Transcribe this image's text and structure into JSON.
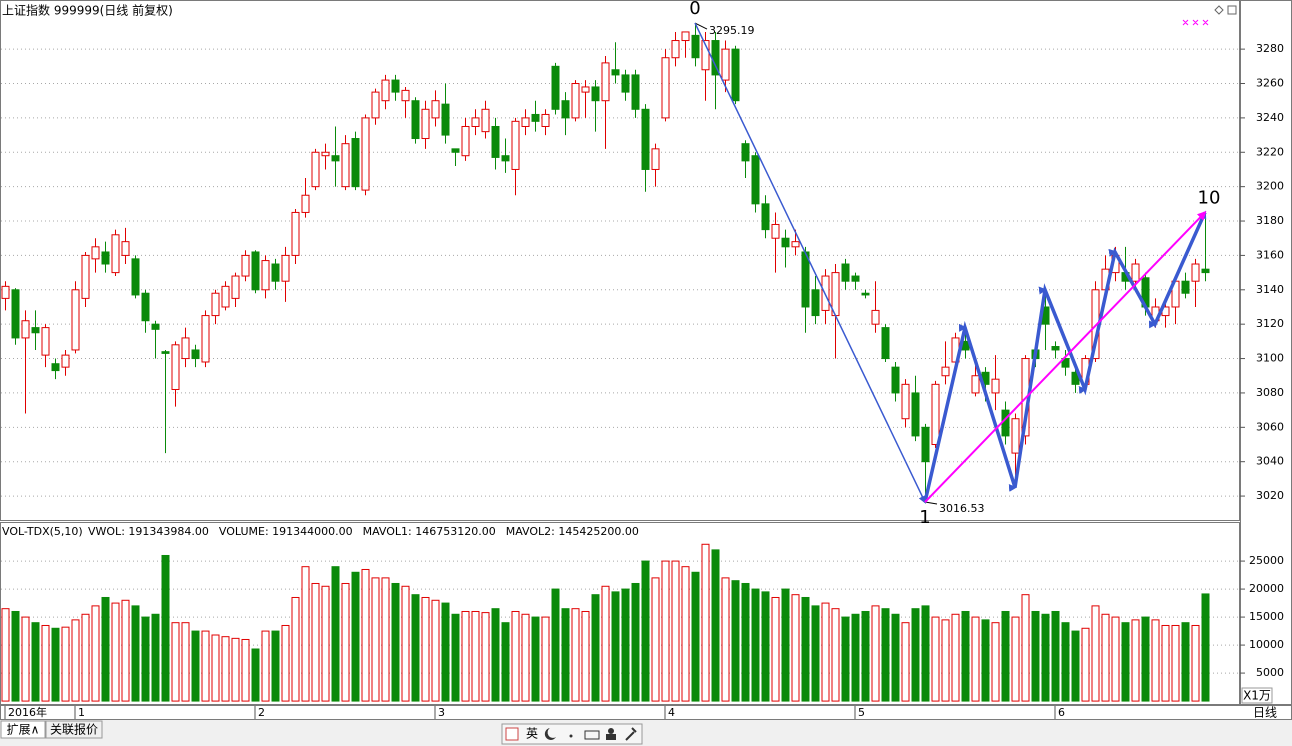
{
  "chart_data": [
    {
      "type": "candlestick",
      "title": "上证指数 999999(日线 前复权)",
      "xlim": [
        -0.5,
        123.5
      ],
      "xticks": [
        {
          "value": 0,
          "label": "2016年"
        },
        {
          "value": 7,
          "label": "1"
        },
        {
          "value": 25,
          "label": "2"
        },
        {
          "value": 43,
          "label": "3"
        },
        {
          "value": 66,
          "label": "4"
        },
        {
          "value": 85,
          "label": "5"
        },
        {
          "value": 105,
          "label": "6"
        }
      ],
      "ylim": [
        3005.5,
        3308
      ],
      "yticks": [
        3020,
        3040,
        3060,
        3080,
        3100,
        3120,
        3140,
        3160,
        3180,
        3200,
        3220,
        3240,
        3260,
        3280
      ],
      "grid": true,
      "up_color": "#e00000",
      "down_color": "#0a8a0a",
      "open": [
        3135,
        3140,
        3112,
        3118,
        3102,
        3097,
        3095,
        3105,
        3135,
        3158,
        3162,
        3150,
        3160,
        3158,
        3138,
        3120,
        3104,
        3082,
        3100,
        3105,
        3098,
        3125,
        3130,
        3135,
        3148,
        3162,
        3140,
        3155,
        3145,
        3160,
        3185,
        3200,
        3218,
        3218,
        3200,
        3228,
        3198,
        3240,
        3250,
        3262,
        3250,
        3250,
        3228,
        3240,
        3248,
        3222,
        3218,
        3235,
        3232,
        3235,
        3218,
        3210,
        3235,
        3242,
        3235,
        3270,
        3250,
        3240,
        3255,
        3258,
        3250,
        3268,
        3265,
        3265,
        3245,
        3210,
        3240,
        3275,
        3285,
        3288,
        3268,
        3285,
        3262,
        3280,
        3225,
        3218,
        3190,
        3170,
        3170,
        3165,
        3162,
        3140,
        3128,
        3125,
        3155,
        3148,
        3138,
        3120,
        3118,
        3095,
        3065,
        3080,
        3060,
        3050,
        3090,
        3098,
        3110,
        3080,
        3092,
        3080,
        3070,
        3045,
        3055,
        3105,
        3130,
        3107,
        3100,
        3092,
        3085,
        3100,
        3140,
        3150,
        3150,
        3145,
        3147,
        3122,
        3125,
        3130,
        3145,
        3145,
        3152
      ],
      "high": [
        3145,
        3141,
        3128,
        3128,
        3120,
        3100,
        3105,
        3145,
        3162,
        3170,
        3168,
        3175,
        3176,
        3160,
        3140,
        3122,
        3105,
        3110,
        3118,
        3108,
        3128,
        3140,
        3145,
        3150,
        3163,
        3163,
        3160,
        3158,
        3165,
        3187,
        3205,
        3222,
        3225,
        3235,
        3230,
        3232,
        3242,
        3257,
        3265,
        3265,
        3258,
        3252,
        3250,
        3256,
        3260,
        3222,
        3240,
        3245,
        3250,
        3240,
        3228,
        3240,
        3245,
        3250,
        3245,
        3272,
        3255,
        3262,
        3262,
        3262,
        3276,
        3284,
        3268,
        3268,
        3248,
        3225,
        3280,
        3290,
        3290,
        3295.19,
        3290,
        3290,
        3285,
        3282,
        3227,
        3220,
        3195,
        3185,
        3175,
        3175,
        3165,
        3148,
        3152,
        3155,
        3158,
        3150,
        3140,
        3145,
        3120,
        3098,
        3088,
        3090,
        3062,
        3087,
        3110,
        3115,
        3115,
        3100,
        3095,
        3102,
        3075,
        3068,
        3102,
        3108,
        3140,
        3110,
        3105,
        3095,
        3102,
        3145,
        3160,
        3165,
        3165,
        3158,
        3150,
        3135,
        3135,
        3148,
        3150,
        3158,
        3185
      ],
      "low": [
        3128,
        3108,
        3068,
        3105,
        3095,
        3088,
        3090,
        3103,
        3130,
        3150,
        3150,
        3148,
        3155,
        3135,
        3115,
        3100,
        3045,
        3072,
        3095,
        3095,
        3095,
        3120,
        3128,
        3130,
        3145,
        3138,
        3135,
        3140,
        3133,
        3155,
        3182,
        3198,
        3210,
        3200,
        3198,
        3198,
        3195,
        3236,
        3245,
        3250,
        3240,
        3225,
        3222,
        3235,
        3225,
        3212,
        3215,
        3230,
        3228,
        3210,
        3208,
        3195,
        3230,
        3232,
        3230,
        3242,
        3230,
        3238,
        3240,
        3232,
        3222,
        3260,
        3250,
        3240,
        3197,
        3200,
        3238,
        3270,
        3275,
        3270,
        3250,
        3245,
        3255,
        3248,
        3205,
        3185,
        3170,
        3150,
        3153,
        3160,
        3115,
        3120,
        3120,
        3100,
        3140,
        3140,
        3135,
        3115,
        3098,
        3075,
        3060,
        3052,
        3016.53,
        3048,
        3085,
        3095,
        3100,
        3078,
        3075,
        3070,
        3050,
        3025,
        3050,
        3095,
        3105,
        3100,
        3090,
        3080,
        3082,
        3098,
        3135,
        3145,
        3140,
        3140,
        3125,
        3118,
        3118,
        3120,
        3135,
        3130,
        3145
      ],
      "close": [
        3142,
        3112,
        3122,
        3115,
        3118,
        3093,
        3102,
        3140,
        3160,
        3165,
        3155,
        3172,
        3168,
        3137,
        3122,
        3117,
        3103,
        3108,
        3112,
        3100,
        3125,
        3138,
        3142,
        3148,
        3160,
        3140,
        3157,
        3145,
        3160,
        3185,
        3195,
        3220,
        3220,
        3215,
        3225,
        3200,
        3240,
        3255,
        3262,
        3255,
        3256,
        3228,
        3245,
        3250,
        3230,
        3220,
        3235,
        3240,
        3245,
        3217,
        3215,
        3238,
        3240,
        3238,
        3242,
        3245,
        3240,
        3260,
        3258,
        3250,
        3272,
        3265,
        3255,
        3245,
        3210,
        3222,
        3275,
        3285,
        3290,
        3275,
        3285,
        3265,
        3280,
        3250,
        3215,
        3190,
        3175,
        3178,
        3165,
        3168,
        3130,
        3125,
        3148,
        3150,
        3145,
        3145,
        3137,
        3128,
        3100,
        3080,
        3085,
        3055,
        3040,
        3085,
        3095,
        3112,
        3105,
        3090,
        3085,
        3088,
        3055,
        3065,
        3100,
        3100,
        3120,
        3105,
        3095,
        3085,
        3100,
        3140,
        3152,
        3160,
        3145,
        3155,
        3130,
        3130,
        3130,
        3145,
        3138,
        3155,
        3150
      ],
      "waves": [
        {
          "color": "#3a5ad0",
          "points": [
            [
              69,
              3295.19
            ],
            [
              92,
              3016.53
            ]
          ],
          "start_label": "0",
          "end_label": "1"
        },
        {
          "color": "#3a5ad0",
          "points": [
            [
              92,
              3016.53
            ],
            [
              96,
              3118
            ],
            [
              101,
              3025
            ],
            [
              104,
              3140
            ],
            [
              108,
              3082
            ],
            [
              111,
              3162
            ],
            [
              115,
              3120
            ],
            [
              120,
              3185
            ]
          ]
        },
        {
          "color": "#ff00ff",
          "points": [
            [
              92,
              3016.53
            ],
            [
              120,
              3185
            ]
          ],
          "end_label": "10"
        }
      ]
    },
    {
      "type": "bar",
      "title": "VOL-TDX(5,10)",
      "legend": [
        {
          "text": "VWOL: 191343984.00",
          "color": "#000080"
        },
        {
          "text": "VOLUME: 191344000.00",
          "color": "#d000d0"
        },
        {
          "text": "MAVOL1: 146753120.00",
          "color": "#d000d0"
        },
        {
          "text": "MAVOL2: 145425200.00",
          "color": "#808080"
        }
      ],
      "xlim": [
        -0.5,
        123.5
      ],
      "values": [
        16500,
        16000,
        15000,
        14000,
        13500,
        13000,
        13200,
        14500,
        15500,
        17000,
        18500,
        17500,
        18000,
        17000,
        15000,
        15500,
        26000,
        14000,
        14000,
        12500,
        12500,
        11800,
        11500,
        11200,
        11000,
        9300,
        12500,
        12500,
        13500,
        18500,
        24000,
        21000,
        20500,
        24000,
        21000,
        23000,
        23500,
        22000,
        22000,
        21000,
        20500,
        19000,
        18500,
        18000,
        17500,
        15500,
        16000,
        16000,
        15800,
        16500,
        14000,
        16000,
        15500,
        15000,
        15000,
        20000,
        16500,
        16500,
        16000,
        19000,
        20500,
        19500,
        20000,
        21000,
        25000,
        22000,
        25000,
        25000,
        24000,
        23000,
        28000,
        27000,
        22000,
        21500,
        21000,
        20000,
        19500,
        18500,
        20000,
        19000,
        18500,
        17000,
        17500,
        16500,
        15000,
        15500,
        16000,
        17000,
        16500,
        15500,
        14000,
        16500,
        17000,
        15000,
        14500,
        15500,
        16000,
        15000,
        14500,
        14000,
        16000,
        15000,
        19000,
        16000,
        15500,
        16000,
        14000,
        12500,
        13000,
        17000,
        15500,
        15000,
        14000,
        14500,
        15000,
        14500,
        13500,
        13500,
        14000,
        13500,
        19134
      ],
      "ylim": [
        -700,
        31800
      ],
      "yticks": [
        5000,
        10000,
        15000,
        20000,
        25000
      ],
      "grid": true,
      "unit_label": "X1万"
    }
  ],
  "period_label": "日线",
  "tabs": [
    "扩展∧",
    "关联报价"
  ],
  "toolbar": {
    "input_method": "英"
  }
}
